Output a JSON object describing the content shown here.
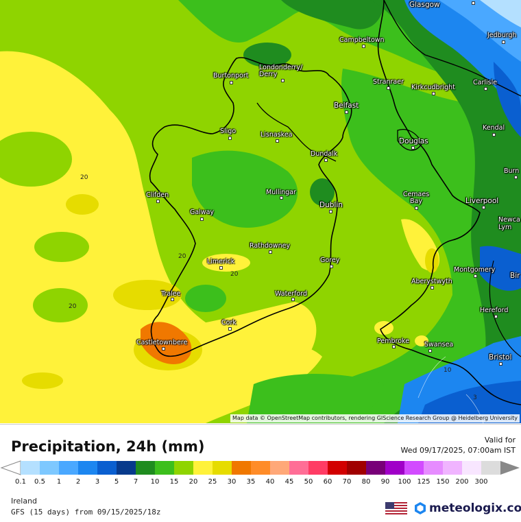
{
  "legend": {
    "title": "Precipitation, 24h (mm)",
    "valid_label": "Valid for",
    "valid_date": "Wed 09/17/2025, 07:00am IST",
    "ticks": [
      "0.1",
      "0.5",
      "1",
      "2",
      "3",
      "5",
      "7",
      "10",
      "15",
      "20",
      "25",
      "30",
      "35",
      "40",
      "45",
      "50",
      "60",
      "70",
      "80",
      "90",
      "100",
      "125",
      "150",
      "200",
      "300"
    ],
    "colors": [
      "#b4e0ff",
      "#7dc8ff",
      "#4aa8ff",
      "#1c86f0",
      "#0a5fd0",
      "#073a8c",
      "#1f8c1f",
      "#3cbf1c",
      "#8fd400",
      "#fff23a",
      "#e6dc00",
      "#f07800",
      "#ff8c28",
      "#ffa878",
      "#ff6e96",
      "#ff3c64",
      "#d20000",
      "#a00000",
      "#780078",
      "#a000c8",
      "#d24bff",
      "#e68cff",
      "#f0b4ff",
      "#f8e6ff",
      "#dcdcdc"
    ]
  },
  "footer": {
    "region": "Ireland",
    "model": "GFS (15 days) from  09/15/2025/18z",
    "brand": "meteologix.com"
  },
  "map": {
    "attribution": "Map data © OpenStreetMap contributors, rendering GIScience Research Group @ Heidelberg University",
    "cities": [
      "Glasgow",
      "Jedburgh",
      "Campbeltown",
      "Londonderry/ Derry",
      "Burtonport",
      "Stranraer",
      "Kirkcudbright",
      "Carlisle",
      "Belfast",
      "Kendal",
      "Sligo",
      "Lisnaskea",
      "Douglas",
      "Dundalk",
      "Burn",
      "Clifden",
      "Mullingar",
      "Cemaes Bay",
      "Liverpool",
      "Dublin",
      "Newca Lym",
      "Galway",
      "Rathdowney",
      "Limerick",
      "Gorey",
      "Montgomery",
      "Bir",
      "Aberystwyth",
      "Tralee",
      "Waterford",
      "Hereford",
      "Cork",
      "Pembroke",
      "Swansea",
      "Castletownbere",
      "Bristol"
    ],
    "contour_labels": [
      "20",
      "20",
      "20",
      "20",
      "10",
      "3"
    ]
  }
}
